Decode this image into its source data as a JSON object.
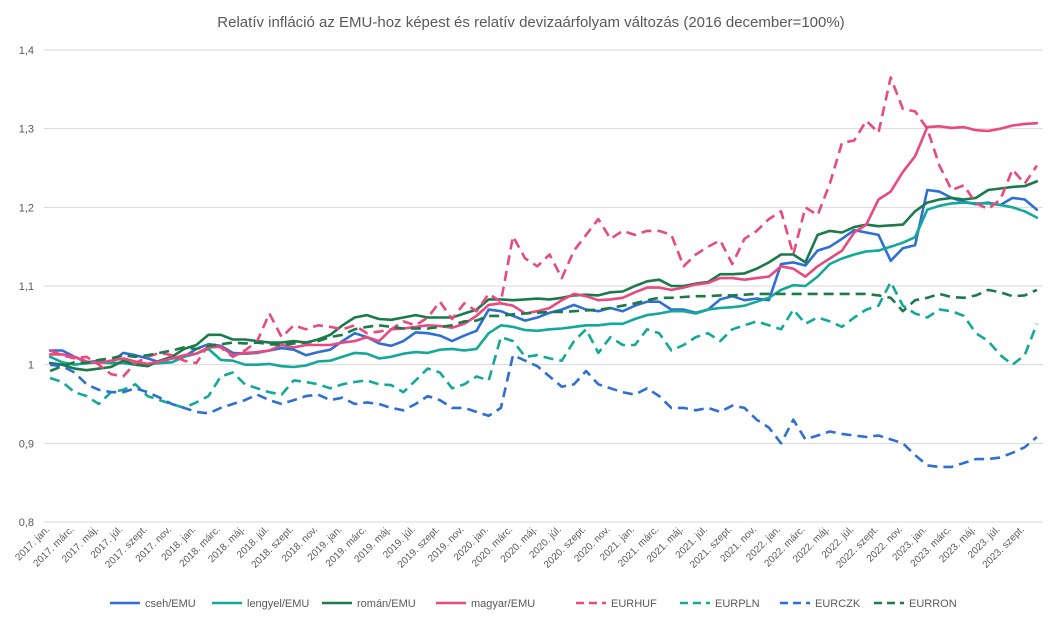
{
  "chart_data": {
    "type": "line",
    "title": "Relatív infláció az EMU-hoz képest és relatív devizaárfolyam változás (2016 december=100%)",
    "xlabel": "",
    "ylabel": "",
    "ylim": [
      0.8,
      1.4
    ],
    "yticks": [
      "0,8",
      "0,9",
      "1",
      "1,1",
      "1,2",
      "1,3",
      "1,4"
    ],
    "ytick_values": [
      0.8,
      0.9,
      1.0,
      1.1,
      1.2,
      1.3,
      1.4
    ],
    "grid": true,
    "legend_position": "bottom",
    "x": [
      "2017. jan.",
      "2017. febr.",
      "2017. márc.",
      "2017. ápr.",
      "2017. máj.",
      "2017. jún.",
      "2017. júl.",
      "2017. aug.",
      "2017. szept.",
      "2017. okt.",
      "2017. nov.",
      "2017. dec.",
      "2018. jan.",
      "2018. febr.",
      "2018. márc.",
      "2018. ápr.",
      "2018. máj.",
      "2018. jún.",
      "2018. júl.",
      "2018. aug.",
      "2018. szept.",
      "2018. okt.",
      "2018. nov.",
      "2018. dec.",
      "2019. jan.",
      "2019. febr.",
      "2019. márc.",
      "2019. ápr.",
      "2019. máj.",
      "2019. jún.",
      "2019. júl.",
      "2019. aug.",
      "2019. szept.",
      "2019. okt.",
      "2019. nov.",
      "2019. dec.",
      "2020. jan.",
      "2020. febr.",
      "2020. márc.",
      "2020. ápr.",
      "2020. máj.",
      "2020. jún.",
      "2020. júl.",
      "2020. aug.",
      "2020. szept.",
      "2020. okt.",
      "2020. nov.",
      "2020. dec.",
      "2021. jan.",
      "2021. febr.",
      "2021. márc.",
      "2021. ápr.",
      "2021. máj.",
      "2021. jún.",
      "2021. júl.",
      "2021. aug.",
      "2021. szept.",
      "2021. okt.",
      "2021. nov.",
      "2021. dec.",
      "2022. jan.",
      "2022. febr.",
      "2022. márc.",
      "2022. ápr.",
      "2022. máj.",
      "2022. jún.",
      "2022. júl.",
      "2022. aug.",
      "2022. szept.",
      "2022. okt.",
      "2022. nov.",
      "2022. dec.",
      "2023. jan.",
      "2023. febr.",
      "2023. márc.",
      "2023. ápr.",
      "2023. máj.",
      "2023. jún.",
      "2023. júl.",
      "2023. aug.",
      "2023. szept.",
      "2023. okt."
    ],
    "xtick_labels": [
      "2017. jan.",
      "2017. márc.",
      "2017. máj.",
      "2017. júl.",
      "2017. szept.",
      "2017. nov.",
      "2018. jan.",
      "2018. márc.",
      "2018. máj.",
      "2018. júl.",
      "2018. szept.",
      "2018. nov.",
      "2019. jan.",
      "2019. márc.",
      "2019. máj.",
      "2019. júl.",
      "2019. szept.",
      "2019. nov.",
      "2020. jan.",
      "2020. márc.",
      "2020. máj.",
      "2020. júl.",
      "2020. szept.",
      "2020. nov.",
      "2021. jan.",
      "2021. márc.",
      "2021. máj.",
      "2021. júl.",
      "2021. szept.",
      "2021. nov.",
      "2022. jan.",
      "2022. márc.",
      "2022. máj.",
      "2022. júl.",
      "2022. szept.",
      "2022. nov.",
      "2023. jan.",
      "2023. márc.",
      "2023. máj.",
      "2023. júl.",
      "2023. szept."
    ],
    "series": [
      {
        "name": "cseh/EMU",
        "color": "#2e6fd6",
        "dash": false,
        "values": [
          1.018,
          1.018,
          1.01,
          1.003,
          1.005,
          1.002,
          1.015,
          1.012,
          1.008,
          1.003,
          1.008,
          1.01,
          1.02,
          1.026,
          1.024,
          1.015,
          1.014,
          1.015,
          1.018,
          1.021,
          1.019,
          1.012,
          1.016,
          1.019,
          1.03,
          1.04,
          1.035,
          1.027,
          1.024,
          1.03,
          1.041,
          1.04,
          1.037,
          1.03,
          1.037,
          1.043,
          1.07,
          1.068,
          1.062,
          1.056,
          1.06,
          1.066,
          1.07,
          1.076,
          1.07,
          1.068,
          1.072,
          1.068,
          1.075,
          1.08,
          1.08,
          1.07,
          1.07,
          1.066,
          1.07,
          1.083,
          1.087,
          1.082,
          1.084,
          1.082,
          1.128,
          1.13,
          1.126,
          1.145,
          1.15,
          1.16,
          1.171,
          1.168,
          1.165,
          1.132,
          1.148,
          1.152,
          1.222,
          1.22,
          1.212,
          1.207,
          1.204,
          1.206,
          1.203,
          1.212,
          1.21,
          1.197
        ]
      },
      {
        "name": "lengyel/EMU",
        "color": "#12a89a",
        "dash": false,
        "values": [
          1.01,
          1.003,
          1.0,
          1.002,
          1.003,
          1.002,
          1.002,
          1.0,
          1.001,
          1.002,
          1.003,
          1.01,
          1.014,
          1.02,
          1.006,
          1.005,
          1.0,
          1.0,
          1.001,
          0.998,
          0.997,
          0.999,
          1.004,
          1.005,
          1.01,
          1.015,
          1.014,
          1.008,
          1.01,
          1.014,
          1.016,
          1.015,
          1.019,
          1.02,
          1.018,
          1.02,
          1.04,
          1.05,
          1.048,
          1.044,
          1.043,
          1.045,
          1.046,
          1.048,
          1.05,
          1.05,
          1.052,
          1.052,
          1.058,
          1.063,
          1.065,
          1.068,
          1.068,
          1.065,
          1.07,
          1.072,
          1.073,
          1.075,
          1.08,
          1.085,
          1.095,
          1.101,
          1.1,
          1.112,
          1.128,
          1.135,
          1.14,
          1.144,
          1.145,
          1.15,
          1.155,
          1.162,
          1.197,
          1.202,
          1.205,
          1.206,
          1.205,
          1.205,
          1.203,
          1.2,
          1.195,
          1.187
        ]
      },
      {
        "name": "román/EMU",
        "color": "#1a7a4a",
        "dash": false,
        "values": [
          1.002,
          1.0,
          0.995,
          0.993,
          0.995,
          0.997,
          1.005,
          1.0,
          0.998,
          1.005,
          1.01,
          1.02,
          1.025,
          1.038,
          1.038,
          1.032,
          1.032,
          1.03,
          1.028,
          1.028,
          1.03,
          1.028,
          1.032,
          1.038,
          1.05,
          1.06,
          1.063,
          1.058,
          1.057,
          1.06,
          1.063,
          1.06,
          1.06,
          1.06,
          1.065,
          1.07,
          1.083,
          1.083,
          1.082,
          1.083,
          1.084,
          1.083,
          1.085,
          1.088,
          1.089,
          1.088,
          1.092,
          1.093,
          1.1,
          1.106,
          1.108,
          1.1,
          1.1,
          1.103,
          1.105,
          1.115,
          1.115,
          1.116,
          1.122,
          1.13,
          1.14,
          1.14,
          1.13,
          1.165,
          1.17,
          1.168,
          1.175,
          1.178,
          1.176,
          1.177,
          1.178,
          1.195,
          1.206,
          1.21,
          1.212,
          1.21,
          1.212,
          1.222,
          1.224,
          1.226,
          1.227,
          1.233
        ]
      },
      {
        "name": "magyar/EMU",
        "color": "#e84a7f",
        "dash": false,
        "values": [
          1.013,
          1.013,
          1.01,
          1.004,
          1.002,
          1.005,
          1.008,
          1.004,
          1.001,
          1.004,
          1.008,
          1.012,
          1.014,
          1.022,
          1.023,
          1.012,
          1.015,
          1.016,
          1.018,
          1.025,
          1.022,
          1.025,
          1.025,
          1.025,
          1.028,
          1.03,
          1.035,
          1.03,
          1.045,
          1.046,
          1.048,
          1.05,
          1.049,
          1.047,
          1.052,
          1.062,
          1.076,
          1.078,
          1.075,
          1.065,
          1.068,
          1.072,
          1.082,
          1.09,
          1.087,
          1.082,
          1.083,
          1.085,
          1.092,
          1.098,
          1.098,
          1.095,
          1.098,
          1.102,
          1.104,
          1.11,
          1.11,
          1.108,
          1.11,
          1.112,
          1.125,
          1.122,
          1.112,
          1.125,
          1.135,
          1.145,
          1.168,
          1.178,
          1.21,
          1.22,
          1.245,
          1.265,
          1.302,
          1.303,
          1.301,
          1.302,
          1.298,
          1.297,
          1.3,
          1.304,
          1.306,
          1.307
        ]
      },
      {
        "name": "EURHUF",
        "color": "#e84a7f",
        "dash": true,
        "values": [
          1.018,
          1.012,
          1.008,
          1.01,
          1.0,
          0.988,
          0.985,
          1.002,
          1.01,
          1.015,
          1.012,
          1.005,
          1.002,
          1.025,
          1.022,
          1.01,
          1.018,
          1.03,
          1.065,
          1.035,
          1.05,
          1.045,
          1.05,
          1.048,
          1.045,
          1.05,
          1.04,
          1.042,
          1.045,
          1.055,
          1.05,
          1.06,
          1.08,
          1.058,
          1.078,
          1.068,
          1.09,
          1.08,
          1.163,
          1.135,
          1.125,
          1.14,
          1.11,
          1.145,
          1.165,
          1.185,
          1.16,
          1.17,
          1.165,
          1.17,
          1.17,
          1.165,
          1.125,
          1.14,
          1.15,
          1.158,
          1.128,
          1.16,
          1.17,
          1.185,
          1.195,
          1.14,
          1.2,
          1.19,
          1.23,
          1.282,
          1.285,
          1.31,
          1.295,
          1.365,
          1.325,
          1.322,
          1.3,
          1.253,
          1.222,
          1.228,
          1.205,
          1.198,
          1.21,
          1.248,
          1.23,
          1.253
        ]
      },
      {
        "name": "EURPLN",
        "color": "#12a89a",
        "dash": true,
        "values": [
          0.983,
          0.978,
          0.965,
          0.96,
          0.95,
          0.965,
          0.968,
          0.975,
          0.96,
          0.955,
          0.95,
          0.945,
          0.952,
          0.96,
          0.985,
          0.99,
          0.975,
          0.97,
          0.965,
          0.962,
          0.98,
          0.978,
          0.975,
          0.97,
          0.975,
          0.978,
          0.98,
          0.975,
          0.974,
          0.965,
          0.98,
          0.995,
          0.99,
          0.97,
          0.975,
          0.985,
          0.98,
          1.035,
          1.03,
          1.01,
          1.012,
          1.008,
          1.005,
          1.03,
          1.045,
          1.015,
          1.035,
          1.025,
          1.025,
          1.045,
          1.04,
          1.018,
          1.025,
          1.035,
          1.04,
          1.03,
          1.045,
          1.05,
          1.055,
          1.05,
          1.045,
          1.07,
          1.052,
          1.06,
          1.055,
          1.048,
          1.06,
          1.07,
          1.075,
          1.105,
          1.075,
          1.065,
          1.06,
          1.07,
          1.068,
          1.062,
          1.04,
          1.03,
          1.012,
          1.0,
          1.012,
          1.052
        ]
      },
      {
        "name": "EURCZK",
        "color": "#2e6fd6",
        "dash": true,
        "values": [
          1.0,
          0.998,
          0.99,
          0.975,
          0.968,
          0.965,
          0.965,
          0.97,
          0.965,
          0.958,
          0.95,
          0.945,
          0.94,
          0.938,
          0.945,
          0.95,
          0.955,
          0.962,
          0.955,
          0.95,
          0.955,
          0.96,
          0.962,
          0.955,
          0.958,
          0.95,
          0.952,
          0.95,
          0.945,
          0.942,
          0.95,
          0.96,
          0.955,
          0.945,
          0.945,
          0.94,
          0.935,
          0.945,
          1.012,
          1.005,
          0.998,
          0.985,
          0.972,
          0.975,
          0.992,
          0.975,
          0.97,
          0.965,
          0.962,
          0.97,
          0.96,
          0.945,
          0.945,
          0.942,
          0.945,
          0.94,
          0.948,
          0.945,
          0.93,
          0.92,
          0.9,
          0.93,
          0.905,
          0.91,
          0.915,
          0.912,
          0.91,
          0.908,
          0.91,
          0.905,
          0.9,
          0.885,
          0.872,
          0.87,
          0.87,
          0.875,
          0.88,
          0.88,
          0.882,
          0.888,
          0.895,
          0.908
        ]
      },
      {
        "name": "EURRON",
        "color": "#1a7a4a",
        "dash": true,
        "values": [
          0.992,
          0.998,
          1.003,
          1.002,
          1.006,
          1.008,
          1.012,
          1.01,
          1.012,
          1.015,
          1.018,
          1.022,
          1.02,
          1.024,
          1.026,
          1.028,
          1.027,
          1.028,
          1.026,
          1.025,
          1.027,
          1.028,
          1.03,
          1.035,
          1.038,
          1.045,
          1.048,
          1.05,
          1.048,
          1.046,
          1.046,
          1.046,
          1.048,
          1.05,
          1.055,
          1.056,
          1.062,
          1.062,
          1.064,
          1.065,
          1.066,
          1.067,
          1.067,
          1.068,
          1.069,
          1.07,
          1.072,
          1.075,
          1.078,
          1.082,
          1.085,
          1.085,
          1.086,
          1.087,
          1.087,
          1.088,
          1.088,
          1.089,
          1.09,
          1.09,
          1.09,
          1.09,
          1.09,
          1.09,
          1.09,
          1.09,
          1.09,
          1.09,
          1.088,
          1.085,
          1.068,
          1.082,
          1.085,
          1.09,
          1.086,
          1.085,
          1.088,
          1.095,
          1.092,
          1.087,
          1.088,
          1.095
        ]
      }
    ]
  }
}
